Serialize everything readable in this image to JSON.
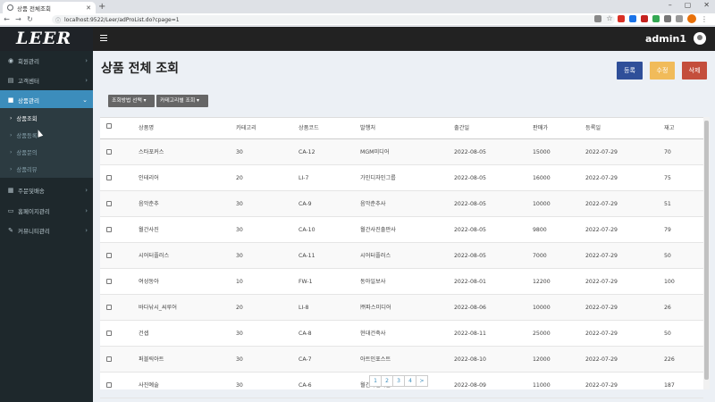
{
  "browser": {
    "tab_title": "상품 전체조회",
    "url": "localhost:9522/Leer/adProList.do?cpage=1"
  },
  "header": {
    "logo": "LEER",
    "username": "admin1"
  },
  "sidebar": {
    "items": [
      {
        "label": "회원관리",
        "icon": "user-circle-icon"
      },
      {
        "label": "고객센터",
        "icon": "headset-icon"
      },
      {
        "label": "상품관리",
        "icon": "box-icon"
      },
      {
        "label": "주문및배송",
        "icon": "truck-icon"
      },
      {
        "label": "홈페이지관리",
        "icon": "desktop-icon"
      },
      {
        "label": "커뮤니티관리",
        "icon": "pencil-icon"
      }
    ],
    "submenu": [
      "상품조회",
      "상품등록",
      "상품문의",
      "상품리뷰"
    ]
  },
  "page": {
    "title": "상품 전체 조회",
    "register_label": "등록",
    "modify_label": "수정",
    "delete_label": "삭제",
    "method_select_label": "조회방법 선택 ▾",
    "category_select_label": "카테고리별 조회 ▾"
  },
  "table": {
    "columns": [
      "상품명",
      "카테고리",
      "상품코드",
      "발행처",
      "출간일",
      "판매가",
      "등록일",
      "재고"
    ],
    "rows": [
      [
        "스타포커스",
        "30",
        "CA-12",
        "MGM미디어",
        "2022-08-05",
        "15000",
        "2022-07-29",
        "70"
      ],
      [
        "인테리어",
        "20",
        "LI-7",
        "가인디자인그룹",
        "2022-08-05",
        "16000",
        "2022-07-29",
        "75"
      ],
      [
        "음악춘추",
        "30",
        "CA-9",
        "음악춘추사",
        "2022-08-05",
        "10000",
        "2022-07-29",
        "51"
      ],
      [
        "월간사진",
        "30",
        "CA-10",
        "월간사진출판사",
        "2022-08-05",
        "9800",
        "2022-07-29",
        "79"
      ],
      [
        "시어터플러스",
        "30",
        "CA-11",
        "시어터플러스",
        "2022-08-05",
        "7000",
        "2022-07-29",
        "50"
      ],
      [
        "여성동아",
        "10",
        "FW-1",
        "동아일보사",
        "2022-08-01",
        "12200",
        "2022-07-29",
        "100"
      ],
      [
        "바다낚시_씨루어",
        "20",
        "LI-8",
        "㈜파스미디어",
        "2022-08-06",
        "10000",
        "2022-07-29",
        "26"
      ],
      [
        "건셉",
        "30",
        "CA-8",
        "현대건축사",
        "2022-08-11",
        "25000",
        "2022-07-29",
        "50"
      ],
      [
        "퍼블릭아트",
        "30",
        "CA-7",
        "아트인포스트",
        "2022-08-10",
        "12000",
        "2022-07-29",
        "226"
      ],
      [
        "사진예술",
        "30",
        "CA-6",
        "월간사진예술",
        "2022-08-09",
        "11000",
        "2022-07-29",
        "187"
      ]
    ]
  },
  "pagination": [
    "1",
    "2",
    "3",
    "4",
    ">"
  ],
  "colors": {
    "sidebar_bg": "#1e282c",
    "active": "#3c8dbc",
    "register": "#2f4f99",
    "modify": "#f1bb5a",
    "delete": "#c44e3c"
  }
}
